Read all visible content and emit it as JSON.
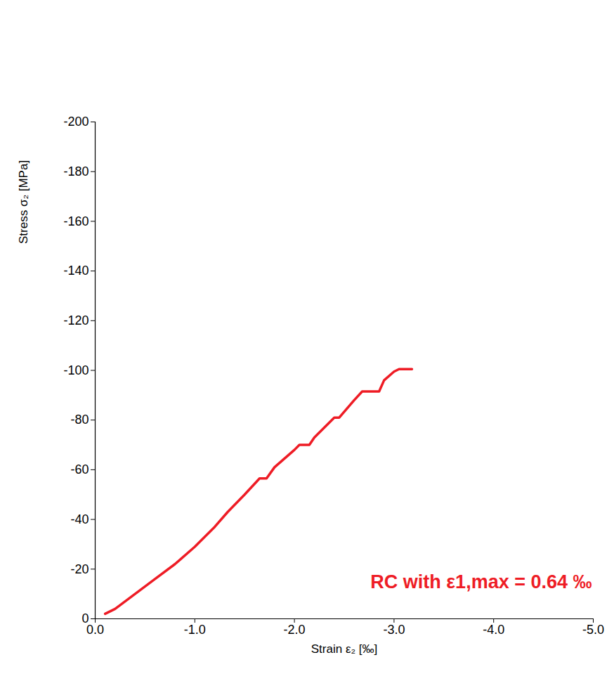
{
  "chart_data": {
    "type": "line",
    "x_label": "Strain ε₂ [‰]",
    "y_label": "Stress σ₂ [MPa]",
    "annotation": "RC with ε1,max = 0.64 ‰",
    "xlim": [
      0,
      -5
    ],
    "ylim": [
      0,
      -200
    ],
    "xticks": [
      {
        "value": 0,
        "label": "0.0"
      },
      {
        "value": -1,
        "label": "-1.0"
      },
      {
        "value": -2,
        "label": "-2.0"
      },
      {
        "value": -3,
        "label": "-3.0"
      },
      {
        "value": -4,
        "label": "-4.0"
      },
      {
        "value": -5,
        "label": "-5.0"
      }
    ],
    "yticks": [
      0,
      -20,
      -40,
      -60,
      -80,
      -100,
      -120,
      -140,
      -160,
      -180,
      -200
    ],
    "grid": false,
    "series": [
      {
        "name": "RC",
        "color": "#ee1c25",
        "x": [
          -0.1,
          -0.2,
          -0.4,
          -0.6,
          -0.8,
          -1.0,
          -1.2,
          -1.33,
          -1.5,
          -1.65,
          -1.72,
          -1.8,
          -2.0,
          -2.05,
          -2.15,
          -2.2,
          -2.4,
          -2.45,
          -2.6,
          -2.68,
          -2.85,
          -2.9,
          -3.0,
          -3.05,
          -3.18
        ],
        "values": [
          -2,
          -4,
          -10,
          -16,
          -22,
          -29,
          -37,
          -43,
          -50,
          -56.5,
          -56.5,
          -61,
          -68,
          -70,
          -70,
          -73,
          -81,
          -81,
          -88,
          -91.5,
          -91.5,
          -96,
          -99.5,
          -100.5,
          -100.5
        ]
      }
    ]
  }
}
